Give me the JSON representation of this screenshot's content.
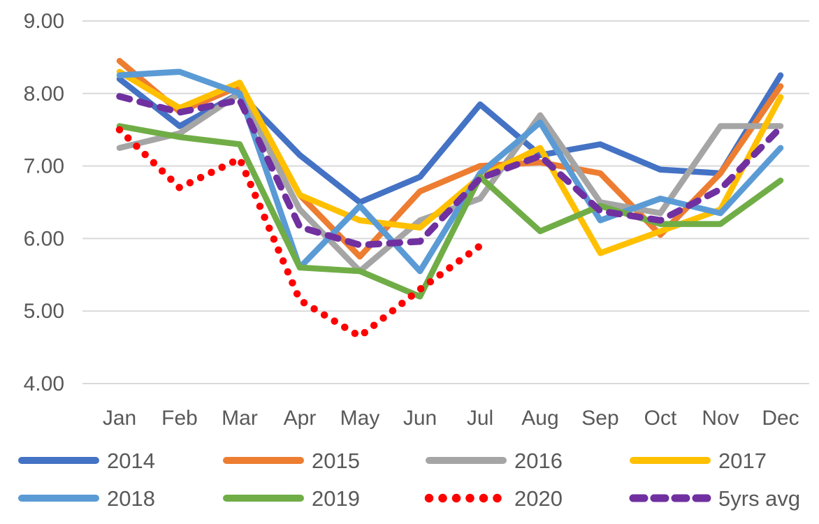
{
  "chart_data": {
    "type": "line",
    "categories": [
      "Jan",
      "Feb",
      "Mar",
      "Apr",
      "May",
      "Jun",
      "Jul",
      "Aug",
      "Sep",
      "Oct",
      "Nov",
      "Dec"
    ],
    "series": [
      {
        "name": "2014",
        "color": "#4472C4",
        "style": "solid",
        "values": [
          8.2,
          7.55,
          8.0,
          7.15,
          6.5,
          6.85,
          7.85,
          7.15,
          7.3,
          6.95,
          6.9,
          8.25
        ]
      },
      {
        "name": "2015",
        "color": "#ED7D31",
        "style": "solid",
        "values": [
          8.45,
          7.75,
          8.1,
          6.6,
          5.75,
          6.65,
          7.0,
          7.05,
          6.9,
          6.05,
          6.9,
          8.1
        ]
      },
      {
        "name": "2016",
        "color": "#A5A5A5",
        "style": "solid",
        "values": [
          7.25,
          7.45,
          8.0,
          6.4,
          5.55,
          6.25,
          6.55,
          7.7,
          6.5,
          6.35,
          7.55,
          7.55
        ]
      },
      {
        "name": "2017",
        "color": "#FFC000",
        "style": "solid",
        "values": [
          8.3,
          7.8,
          8.15,
          6.6,
          6.25,
          6.15,
          6.85,
          7.25,
          5.8,
          6.1,
          6.4,
          7.95
        ]
      },
      {
        "name": "2018",
        "color": "#5B9BD5",
        "style": "solid",
        "values": [
          8.25,
          8.3,
          8.0,
          5.6,
          6.45,
          5.55,
          6.9,
          7.6,
          6.25,
          6.55,
          6.35,
          7.25
        ]
      },
      {
        "name": "2019",
        "color": "#70AD47",
        "style": "solid",
        "values": [
          7.55,
          7.4,
          7.3,
          5.6,
          5.55,
          5.2,
          6.85,
          6.1,
          6.45,
          6.2,
          6.2,
          6.8
        ]
      },
      {
        "name": "2020",
        "color": "#FF0000",
        "style": "dotted",
        "values": [
          7.5,
          6.7,
          7.1,
          5.15,
          4.65,
          5.3,
          5.9,
          null,
          null,
          null,
          null,
          null
        ]
      },
      {
        "name": "5yrs avg",
        "color": "#7030A0",
        "style": "dashed",
        "values": [
          7.96,
          7.74,
          7.91,
          6.16,
          5.91,
          5.96,
          6.83,
          7.14,
          6.38,
          6.25,
          6.68,
          7.53
        ]
      }
    ],
    "title": "",
    "xlabel": "",
    "ylabel": "",
    "ylim": [
      4,
      9
    ],
    "ytick_labels": [
      "9.00",
      "8.00",
      "7.00",
      "6.00",
      "5.00",
      "4.00"
    ],
    "ytick_values": [
      9,
      8,
      7,
      6,
      5,
      4
    ],
    "grid": true,
    "gridline_color": "#D9D9D9",
    "axis_text_color": "#595959",
    "legend_position": "bottom",
    "legend_rows": [
      [
        "2014",
        "2015",
        "2016",
        "2017"
      ],
      [
        "2018",
        "2019",
        "2020",
        "5yrs avg"
      ]
    ]
  }
}
